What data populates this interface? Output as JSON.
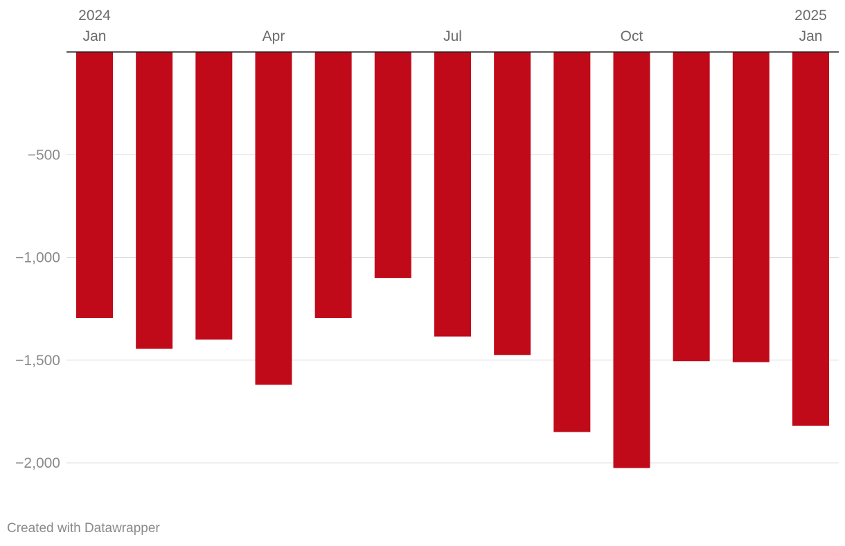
{
  "chart_data": {
    "type": "bar",
    "title": "",
    "xlabel": "",
    "ylabel": "",
    "categories": [
      "Jan 2024",
      "Feb 2024",
      "Mar 2024",
      "Apr 2024",
      "May 2024",
      "Jun 2024",
      "Jul 2024",
      "Aug 2024",
      "Sep 2024",
      "Oct 2024",
      "Nov 2024",
      "Dec 2024",
      "Jan 2025"
    ],
    "values": [
      -1295,
      -1445,
      -1400,
      -1620,
      -1295,
      -1100,
      -1385,
      -1475,
      -1850,
      -2025,
      -1505,
      -1510,
      -1820
    ],
    "ylim": [
      -2000,
      0
    ],
    "yticks": [
      {
        "value": -500,
        "label": "−500"
      },
      {
        "value": -1000,
        "label": "−1,000"
      },
      {
        "value": -1500,
        "label": "−1,500"
      },
      {
        "value": -2000,
        "label": "−2,000"
      }
    ],
    "xticks": [
      {
        "index": 0,
        "year": "2024",
        "month": "Jan"
      },
      {
        "index": 3,
        "year": "",
        "month": "Apr"
      },
      {
        "index": 6,
        "year": "",
        "month": "Jul"
      },
      {
        "index": 9,
        "year": "",
        "month": "Oct"
      },
      {
        "index": 12,
        "year": "2025",
        "month": "Jan"
      }
    ],
    "bar_color": "#c00a1a",
    "grid": true,
    "legend": "none"
  },
  "footer": {
    "credit": "Created with Datawrapper"
  }
}
